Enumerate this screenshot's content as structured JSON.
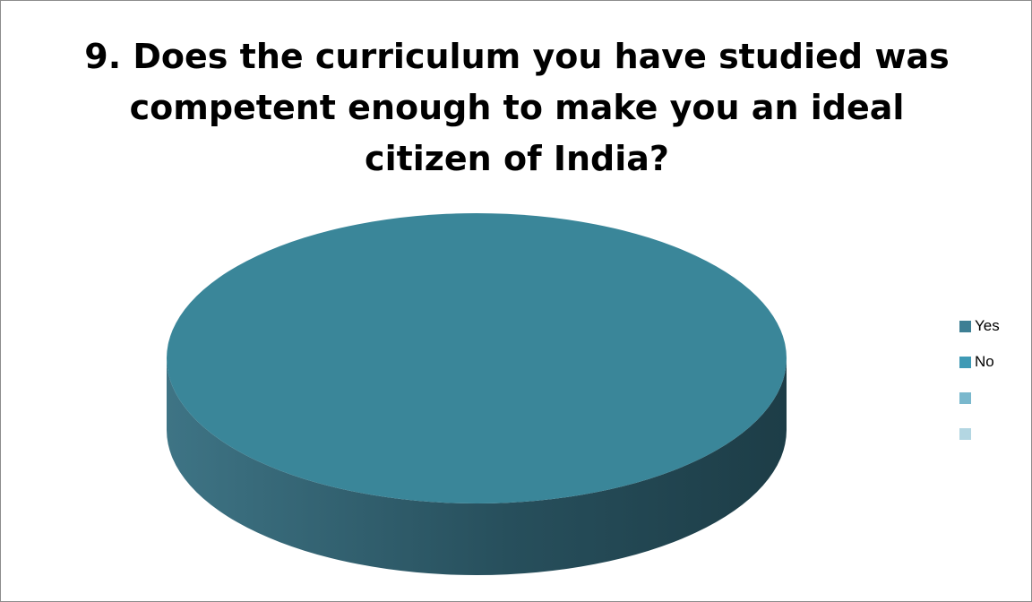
{
  "chart_data": {
    "type": "pie",
    "title": "9. Does the curriculum you have studied was competent enough to make you an ideal citizen of India?",
    "style": "3d",
    "legend_position": "right",
    "categories": [
      "Yes",
      "No",
      "",
      ""
    ],
    "values": [
      0,
      100,
      0,
      0
    ],
    "colors": [
      "#3e7f94",
      "#3f9ab5",
      "#7ab8cd",
      "#b3d6e2"
    ],
    "top_color": "#3a8699",
    "side_colors": [
      "#3e7485",
      "#274f5c",
      "#1d3d47"
    ]
  }
}
